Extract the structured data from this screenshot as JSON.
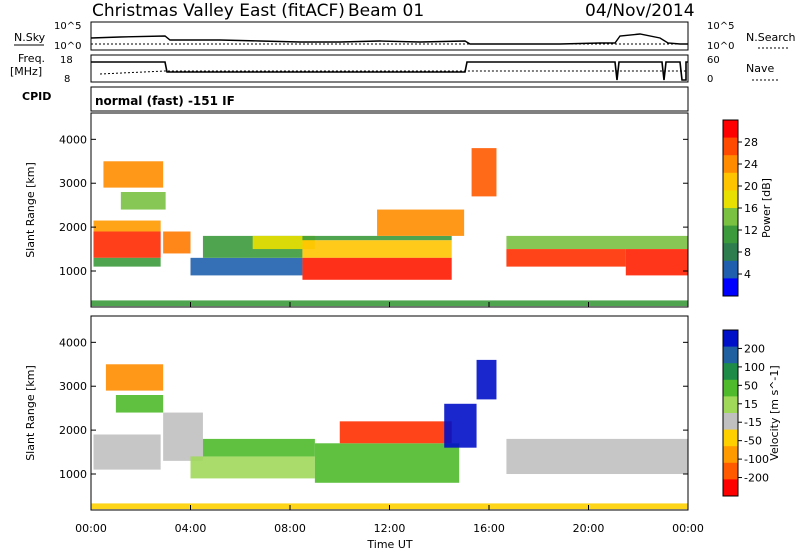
{
  "header": {
    "title": "Christmas Valley East (fitACF)",
    "beam": "Beam 01",
    "date": "04/Nov/2014"
  },
  "top_panels": {
    "nsky_label": "N.Sky",
    "nsearch_label": "N.Search",
    "noise_ticks_left": [
      "10^5",
      "10^0"
    ],
    "noise_ticks_right": [
      "10^5",
      "10^0"
    ],
    "freq_label_line1": "Freq.",
    "freq_label_line2": "[MHz]",
    "freq_ticks": [
      "18",
      "8"
    ],
    "nave_label": "Nave",
    "nave_ticks": [
      "60",
      "0"
    ],
    "cpid_label": "CPID",
    "cpid_text": "normal (fast) -151 IF"
  },
  "colorbars": {
    "power": {
      "label": "Power [dB]",
      "ticks": [
        "28",
        "24",
        "20",
        "16",
        "12",
        "8",
        "4"
      ],
      "colors": [
        "#ff0000",
        "#ff4a00",
        "#ff8c00",
        "#ffc400",
        "#e8e000",
        "#7ac142",
        "#3c9a3c",
        "#2e7d4f",
        "#1f5fae",
        "#0000ff"
      ]
    },
    "velocity": {
      "label": "Velocity [m s^-1]",
      "ticks": [
        "200",
        "100",
        "50",
        "15",
        "-15",
        "-50",
        "-100",
        "-200"
      ],
      "colors": [
        "#0010c8",
        "#2060a0",
        "#1e8c46",
        "#4fba2c",
        "#a0d85a",
        "#c0c0c0",
        "#ffd000",
        "#ff9a00",
        "#ff5a00",
        "#ff0000"
      ]
    }
  },
  "chart_data": [
    {
      "type": "heatmap",
      "name": "power",
      "ylabel": "Slant Range [km]",
      "yticks": [
        1000,
        2000,
        3000,
        4000
      ],
      "ylim": [
        180,
        4600
      ],
      "xlim": [
        0,
        24
      ],
      "colorbar": "Power [dB]",
      "bands": [
        {
          "x0": 0.1,
          "x1": 2.8,
          "y0": 1300,
          "y1": 1900,
          "c": "#ff2a00"
        },
        {
          "x0": 0.1,
          "x1": 2.8,
          "y0": 1900,
          "y1": 2150,
          "c": "#ff9a00"
        },
        {
          "x0": 0.1,
          "x1": 2.8,
          "y0": 1100,
          "y1": 1300,
          "c": "#3c9a3c"
        },
        {
          "x0": 0.5,
          "x1": 2.9,
          "y0": 2900,
          "y1": 3500,
          "c": "#ff8c00"
        },
        {
          "x0": 1.2,
          "x1": 3.0,
          "y0": 2400,
          "y1": 2800,
          "c": "#7ac142"
        },
        {
          "x0": 2.9,
          "x1": 4.0,
          "y0": 1400,
          "y1": 1900,
          "c": "#ff7a00"
        },
        {
          "x0": 4.0,
          "x1": 8.5,
          "y0": 900,
          "y1": 1300,
          "c": "#1f5fae"
        },
        {
          "x0": 4.5,
          "x1": 8.5,
          "y0": 1300,
          "y1": 1800,
          "c": "#3c9a3c"
        },
        {
          "x0": 6.5,
          "x1": 9.0,
          "y0": 1500,
          "y1": 1800,
          "c": "#e8e000"
        },
        {
          "x0": 8.5,
          "x1": 14.5,
          "y0": 1700,
          "y1": 1800,
          "c": "#3c9a3c"
        },
        {
          "x0": 8.5,
          "x1": 14.5,
          "y0": 1300,
          "y1": 1700,
          "c": "#ffc400"
        },
        {
          "x0": 8.5,
          "x1": 14.5,
          "y0": 800,
          "y1": 1300,
          "c": "#ff1a00"
        },
        {
          "x0": 11.5,
          "x1": 15.0,
          "y0": 1800,
          "y1": 2400,
          "c": "#ff8c00"
        },
        {
          "x0": 15.3,
          "x1": 16.3,
          "y0": 2700,
          "y1": 3800,
          "c": "#ff5a00"
        },
        {
          "x0": 16.7,
          "x1": 24.0,
          "y0": 1500,
          "y1": 1800,
          "c": "#7ac142"
        },
        {
          "x0": 16.7,
          "x1": 21.5,
          "y0": 1100,
          "y1": 1500,
          "c": "#ff3000"
        },
        {
          "x0": 21.5,
          "x1": 24.0,
          "y0": 900,
          "y1": 1500,
          "c": "#ff2000"
        },
        {
          "x0": 0.0,
          "x1": 24.0,
          "y0": 200,
          "y1": 330,
          "c": "#3c9a3c"
        }
      ]
    },
    {
      "type": "heatmap",
      "name": "velocity",
      "ylabel": "Slant Range [km]",
      "xlabel": "Time UT",
      "xticks": [
        "00:00",
        "04:00",
        "08:00",
        "12:00",
        "16:00",
        "20:00",
        "00:00"
      ],
      "yticks": [
        1000,
        2000,
        3000,
        4000
      ],
      "ylim": [
        180,
        4600
      ],
      "xlim": [
        0,
        24
      ],
      "colorbar": "Velocity [m s^-1]",
      "bands": [
        {
          "x0": 0.1,
          "x1": 2.8,
          "y0": 1100,
          "y1": 1900,
          "c": "#c0c0c0"
        },
        {
          "x0": 0.6,
          "x1": 2.9,
          "y0": 2900,
          "y1": 3500,
          "c": "#ff8c00"
        },
        {
          "x0": 1.0,
          "x1": 2.9,
          "y0": 2400,
          "y1": 2800,
          "c": "#4fba2c"
        },
        {
          "x0": 2.9,
          "x1": 4.5,
          "y0": 1300,
          "y1": 2400,
          "c": "#c0c0c0"
        },
        {
          "x0": 4.0,
          "x1": 9.0,
          "y0": 900,
          "y1": 1400,
          "c": "#a0d85a"
        },
        {
          "x0": 4.5,
          "x1": 9.0,
          "y0": 1400,
          "y1": 1800,
          "c": "#4fba2c"
        },
        {
          "x0": 9.0,
          "x1": 14.8,
          "y0": 800,
          "y1": 1700,
          "c": "#4fba2c"
        },
        {
          "x0": 10.0,
          "x1": 14.5,
          "y0": 1700,
          "y1": 2200,
          "c": "#ff3000"
        },
        {
          "x0": 14.2,
          "x1": 15.5,
          "y0": 1600,
          "y1": 2600,
          "c": "#0010c8"
        },
        {
          "x0": 15.5,
          "x1": 16.3,
          "y0": 2700,
          "y1": 3600,
          "c": "#0010c8"
        },
        {
          "x0": 16.7,
          "x1": 24.0,
          "y0": 1000,
          "y1": 1800,
          "c": "#c0c0c0"
        },
        {
          "x0": 0.0,
          "x1": 24.0,
          "y0": 200,
          "y1": 330,
          "c": "#ffd000"
        }
      ]
    }
  ]
}
